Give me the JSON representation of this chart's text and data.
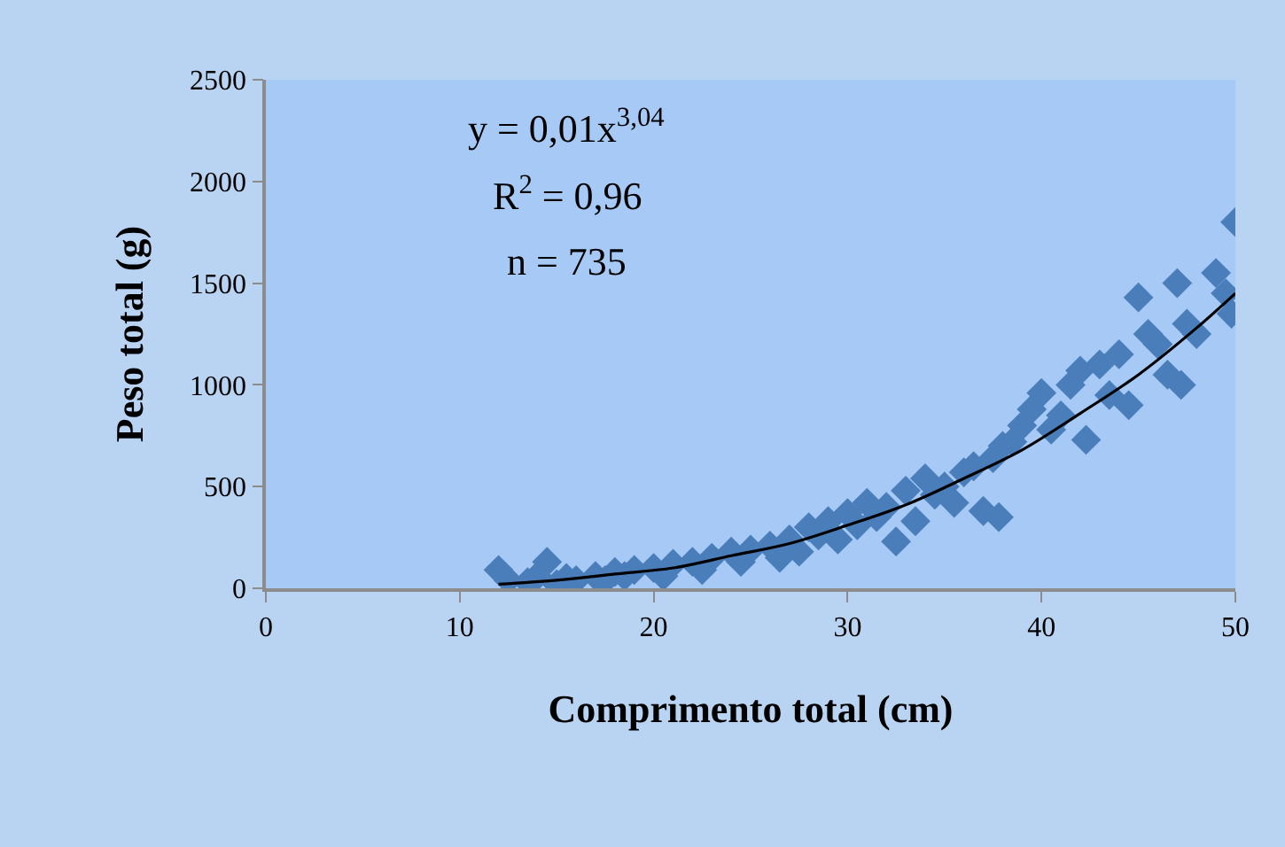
{
  "chart_data": {
    "type": "scatter",
    "xlabel": "Comprimento total (cm)",
    "ylabel": "Peso total (g)",
    "xlim": [
      0,
      50
    ],
    "xticks": [
      0,
      10,
      20,
      30,
      40,
      50
    ],
    "ylim": [
      0,
      2500
    ],
    "yticks": [
      0,
      500,
      1000,
      1500,
      2000,
      2500
    ],
    "grid": false,
    "legend": false,
    "marker": "diamond",
    "annotations": [
      "y = 0,01x$^{3,04}$",
      "R$^{2}$ = 0,96",
      "n = 735"
    ],
    "series": [
      {
        "color": "#4a7ebb",
        "x": [
          12,
          12.5,
          13.5,
          14,
          14.5,
          15,
          15.5,
          16,
          17,
          17.5,
          18,
          18.5,
          19,
          20,
          20.5,
          21,
          22,
          22.5,
          23,
          24,
          24.5,
          25,
          26,
          26.5,
          27,
          27.5,
          28,
          28.5,
          29,
          29.5,
          30,
          30.5,
          31,
          31.5,
          32,
          32.5,
          33,
          33.5,
          34,
          34.5,
          35,
          35.5,
          36,
          36.5,
          37,
          37.5,
          37.8,
          38,
          38.5,
          39,
          39.5,
          40,
          40.5,
          41,
          41.5,
          42,
          42.3,
          43,
          43.5,
          44,
          44.5,
          45,
          45.5,
          46,
          46.5,
          47,
          47.2,
          47.5,
          48,
          49,
          49.5,
          49.8,
          50
        ],
        "values": [
          90,
          40,
          30,
          60,
          130,
          20,
          50,
          40,
          60,
          40,
          80,
          60,
          90,
          100,
          60,
          120,
          130,
          90,
          150,
          180,
          130,
          190,
          210,
          150,
          240,
          180,
          300,
          260,
          330,
          240,
          370,
          310,
          420,
          350,
          400,
          230,
          480,
          330,
          540,
          460,
          500,
          420,
          570,
          600,
          380,
          640,
          350,
          700,
          720,
          800,
          880,
          960,
          780,
          850,
          1000,
          1070,
          730,
          1100,
          950,
          1150,
          900,
          1430,
          1250,
          1200,
          1050,
          1500,
          1000,
          1300,
          1250,
          1550,
          1450,
          1350,
          1800
        ]
      },
      {
        "type": "line",
        "color": "#000000",
        "marker": "none",
        "line_style": "solid",
        "x": [
          12,
          15,
          18,
          21,
          24,
          27,
          30,
          33,
          36,
          39,
          42,
          45,
          48,
          50
        ],
        "values": [
          20,
          40,
          70,
          100,
          160,
          220,
          310,
          410,
          540,
          680,
          860,
          1050,
          1280,
          1450
        ]
      }
    ]
  }
}
